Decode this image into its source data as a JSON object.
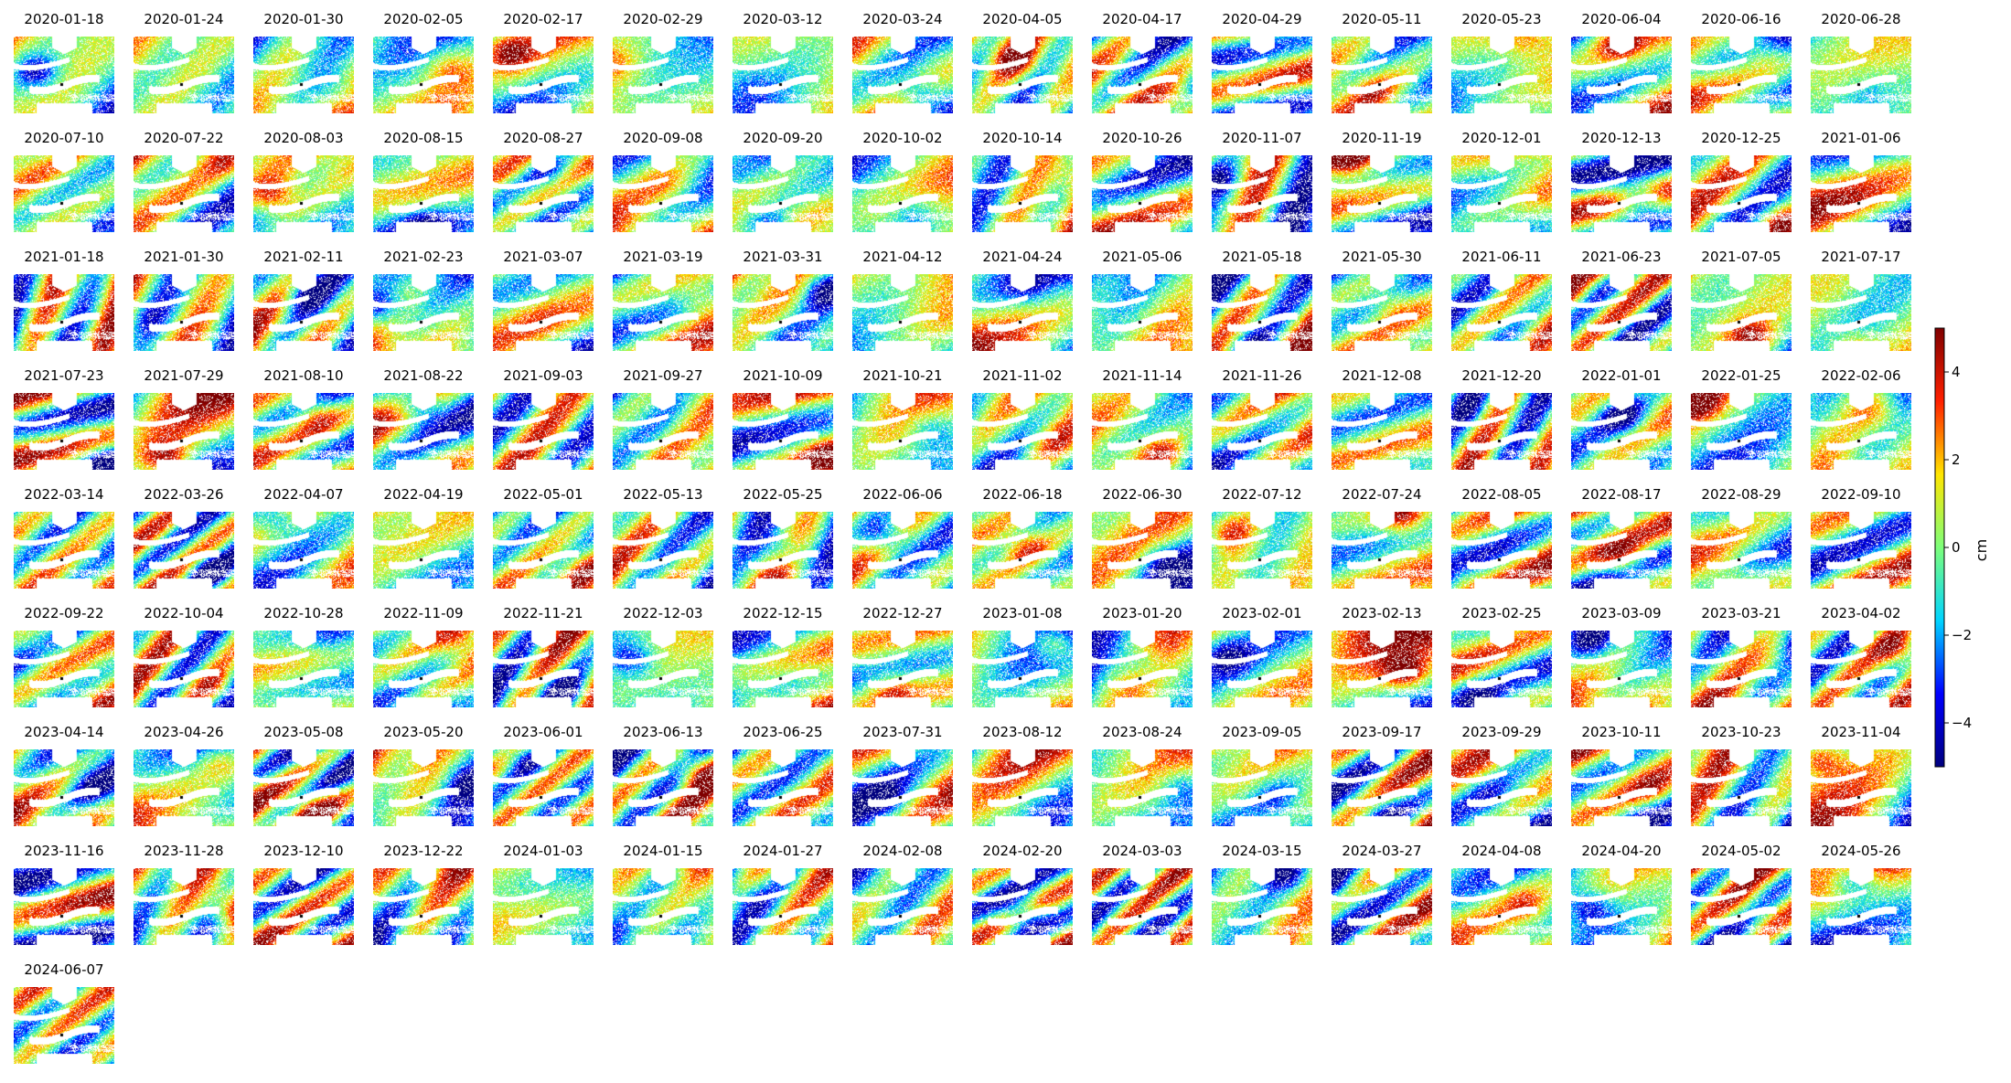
{
  "chart_data": {
    "type": "heatmap",
    "layout": "small-multiples",
    "columns": 16,
    "colormap": "jet",
    "colormap_stops": [
      "#00007f",
      "#0000ff",
      "#00d4ff",
      "#7dff7a",
      "#ffe500",
      "#ff2000",
      "#7f0000"
    ],
    "clim": [
      -5,
      5
    ],
    "colorbar": {
      "label": "cm",
      "ticks": [
        4,
        2,
        0,
        -2,
        -4
      ],
      "tick_labels": [
        "4",
        "2",
        "0",
        "−2",
        "−4"
      ],
      "position": "right"
    },
    "axes_visible": false,
    "reference_point_marker": "black dot",
    "panels": [
      "2020-01-18",
      "2020-01-24",
      "2020-01-30",
      "2020-02-05",
      "2020-02-17",
      "2020-02-29",
      "2020-03-12",
      "2020-03-24",
      "2020-04-05",
      "2020-04-17",
      "2020-04-29",
      "2020-05-11",
      "2020-05-23",
      "2020-06-04",
      "2020-06-16",
      "2020-06-28",
      "2020-07-10",
      "2020-07-22",
      "2020-08-03",
      "2020-08-15",
      "2020-08-27",
      "2020-09-08",
      "2020-09-20",
      "2020-10-02",
      "2020-10-14",
      "2020-10-26",
      "2020-11-07",
      "2020-11-19",
      "2020-12-01",
      "2020-12-13",
      "2020-12-25",
      "2021-01-06",
      "2021-01-18",
      "2021-01-30",
      "2021-02-11",
      "2021-02-23",
      "2021-03-07",
      "2021-03-19",
      "2021-03-31",
      "2021-04-12",
      "2021-04-24",
      "2021-05-06",
      "2021-05-18",
      "2021-05-30",
      "2021-06-11",
      "2021-06-23",
      "2021-07-05",
      "2021-07-17",
      "2021-07-23",
      "2021-07-29",
      "2021-08-10",
      "2021-08-22",
      "2021-09-03",
      "2021-09-27",
      "2021-10-09",
      "2021-10-21",
      "2021-11-02",
      "2021-11-14",
      "2021-11-26",
      "2021-12-08",
      "2021-12-20",
      "2022-01-01",
      "2022-01-25",
      "2022-02-06",
      "2022-03-14",
      "2022-03-26",
      "2022-04-07",
      "2022-04-19",
      "2022-05-01",
      "2022-05-13",
      "2022-05-25",
      "2022-06-06",
      "2022-06-18",
      "2022-06-30",
      "2022-07-12",
      "2022-07-24",
      "2022-08-05",
      "2022-08-17",
      "2022-08-29",
      "2022-09-10",
      "2022-09-22",
      "2022-10-04",
      "2022-10-28",
      "2022-11-09",
      "2022-11-21",
      "2022-12-03",
      "2022-12-15",
      "2022-12-27",
      "2023-01-08",
      "2023-01-20",
      "2023-02-01",
      "2023-02-13",
      "2023-02-25",
      "2023-03-09",
      "2023-03-21",
      "2023-04-02",
      "2023-04-14",
      "2023-04-26",
      "2023-05-08",
      "2023-05-20",
      "2023-06-01",
      "2023-06-13",
      "2023-06-25",
      "2023-07-31",
      "2023-08-12",
      "2023-08-24",
      "2023-09-05",
      "2023-09-17",
      "2023-09-29",
      "2023-10-11",
      "2023-10-23",
      "2023-11-04",
      "2023-11-16",
      "2023-11-28",
      "2023-12-10",
      "2023-12-22",
      "2024-01-03",
      "2024-01-15",
      "2024-01-27",
      "2024-02-08",
      "2024-02-20",
      "2024-03-03",
      "2024-03-15",
      "2024-03-27",
      "2024-04-08",
      "2024-04-20",
      "2024-05-02",
      "2024-05-26",
      "2024-06-07"
    ]
  }
}
